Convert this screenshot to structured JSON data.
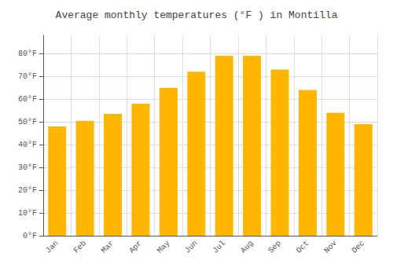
{
  "chart_data": {
    "type": "bar",
    "title": "Average monthly temperatures (°F ) in Montilla",
    "categories": [
      "Jan",
      "Feb",
      "Mar",
      "Apr",
      "May",
      "Jun",
      "Jul",
      "Aug",
      "Sep",
      "Oct",
      "Nov",
      "Dec"
    ],
    "values": [
      48,
      50.5,
      53.5,
      58,
      65,
      72,
      79,
      79,
      73,
      64,
      54,
      49
    ],
    "color": "#FFB700",
    "ylim": [
      0,
      88
    ],
    "yticks": [
      {
        "value": 0,
        "label": "0°F"
      },
      {
        "value": 10,
        "label": "10°F"
      },
      {
        "value": 20,
        "label": "20°F"
      },
      {
        "value": 30,
        "label": "30°F"
      },
      {
        "value": 40,
        "label": "40°F"
      },
      {
        "value": 50,
        "label": "50°F"
      },
      {
        "value": 60,
        "label": "60°F"
      },
      {
        "value": 70,
        "label": "70°F"
      },
      {
        "value": 80,
        "label": "80°F"
      }
    ],
    "grid": true
  }
}
